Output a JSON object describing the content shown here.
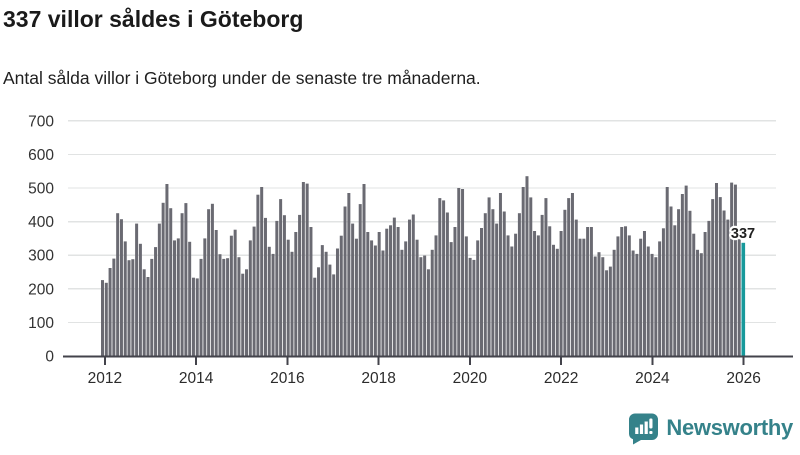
{
  "header": {
    "title": "337 villor såldes i Göteborg",
    "subtitle": "Antal sålda villor i Göteborg under de senaste tre månaderna."
  },
  "chart_data": {
    "type": "bar",
    "title": "337 villor såldes i Göteborg",
    "xlabel": "",
    "ylabel": "",
    "ylim": [
      0,
      700
    ],
    "yticks": [
      0,
      100,
      200,
      300,
      400,
      500,
      600,
      700
    ],
    "xticks": [
      2012,
      2014,
      2016,
      2018,
      2020,
      2022,
      2024,
      2026
    ],
    "x_start_year": 2012,
    "months_per_year": 12,
    "grid": true,
    "legend_position": "none",
    "bar_color": "#6a6a72",
    "highlight_color": "#17999b",
    "gridline_color": "#e1e3e3",
    "axis_color": "#43434b",
    "tick_label_color": "#333333",
    "annotation_color": "#222222",
    "values": [
      226,
      218,
      262,
      290,
      425,
      407,
      341,
      285,
      288,
      394,
      334,
      258,
      235,
      289,
      324,
      394,
      456,
      512,
      440,
      344,
      350,
      425,
      455,
      340,
      233,
      231,
      289,
      350,
      437,
      453,
      375,
      303,
      289,
      291,
      358,
      376,
      294,
      245,
      258,
      344,
      385,
      480,
      503,
      411,
      325,
      304,
      402,
      467,
      419,
      346,
      310,
      369,
      420,
      518,
      513,
      384,
      233,
      264,
      330,
      310,
      272,
      243,
      320,
      358,
      445,
      485,
      394,
      349,
      452,
      512,
      369,
      344,
      329,
      369,
      314,
      379,
      389,
      412,
      384,
      316,
      341,
      406,
      421,
      346,
      294,
      299,
      258,
      316,
      359,
      470,
      463,
      427,
      339,
      384,
      500,
      497,
      356,
      292,
      286,
      344,
      381,
      425,
      472,
      437,
      394,
      485,
      430,
      359,
      326,
      364,
      425,
      503,
      535,
      472,
      372,
      359,
      420,
      470,
      386,
      331,
      319,
      372,
      435,
      470,
      485,
      406,
      349,
      349,
      384,
      384,
      296,
      309,
      294,
      255,
      266,
      316,
      356,
      384,
      386,
      359,
      314,
      304,
      349,
      372,
      326,
      304,
      294,
      341,
      380,
      503,
      445,
      389,
      437,
      482,
      507,
      432,
      364,
      316,
      306,
      369,
      402,
      467,
      515,
      473,
      433,
      406,
      516,
      510,
      355
    ],
    "highlight": {
      "value": 337,
      "label": "337"
    }
  },
  "footer": {
    "brand": "Newsworthy",
    "logo_icon": "newsworthy-speech-bubble-bar-chart-icon"
  }
}
